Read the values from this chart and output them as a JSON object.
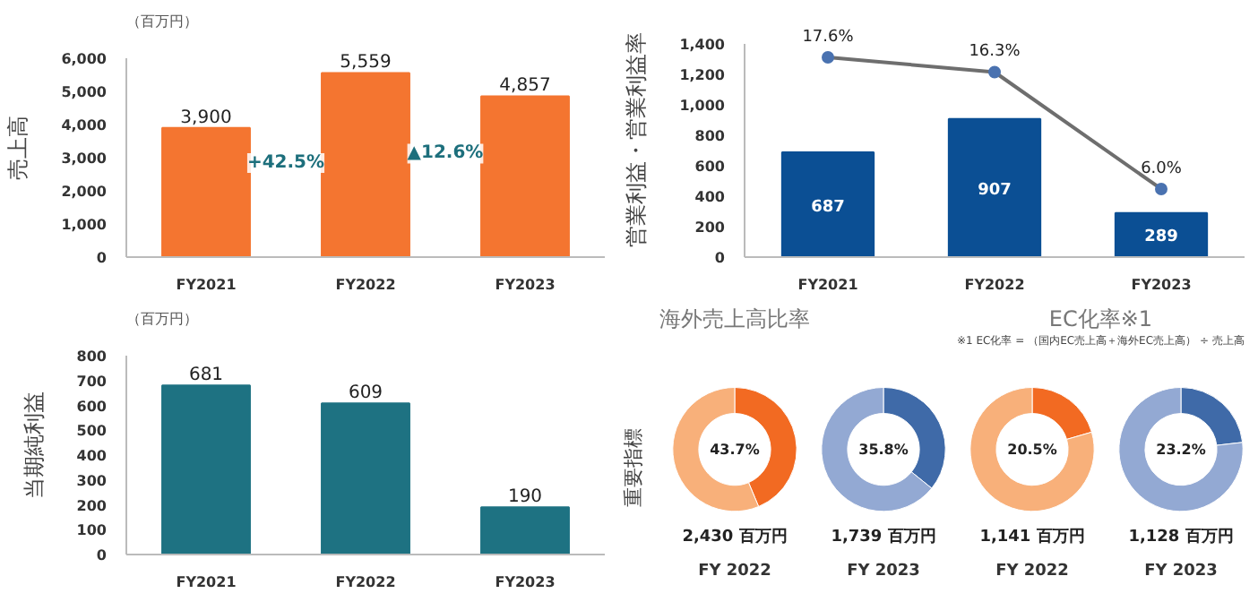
{
  "chart_data": [
    {
      "type": "bar",
      "ylabel": "売上高",
      "annotations": [
        "（百万円）",
        "+42.5%",
        "▲12.6%"
      ],
      "categories": [
        "FY2021",
        "FY2022",
        "FY2023"
      ],
      "ylim": [
        0,
        6000
      ],
      "yticks": [
        0,
        {
          "value": 1000,
          "label": "1,000"
        },
        {
          "value": 2000,
          "label": "2,000"
        },
        {
          "value": 3000,
          "label": "3,000"
        },
        {
          "value": 4000,
          "label": "4,000"
        },
        {
          "value": 5000,
          "label": "5,000"
        },
        {
          "value": 6000,
          "label": "6,000"
        }
      ],
      "series": [
        {
          "color": "#f47530",
          "values": [
            3900,
            5559,
            4857
          ],
          "value_labels": [
            "3,900",
            "5,559",
            "4,857"
          ]
        }
      ]
    },
    {
      "type": "bar",
      "ylabel": "営業利益・営業利益率",
      "categories": [
        "FY2021",
        "FY2022",
        "FY2023"
      ],
      "ylim": [
        0,
        1400
      ],
      "yticks": [
        0,
        200,
        400,
        600,
        800,
        {
          "value": 1000,
          "label": "1,000"
        },
        {
          "value": 1200,
          "label": "1,200"
        },
        {
          "value": 1400,
          "label": "1,400"
        }
      ],
      "y2lim": [
        0,
        18.8
      ],
      "marker": "circle",
      "series": [
        {
          "color": "#0b4f94",
          "values": [
            687,
            907,
            289
          ],
          "value_labels": [
            "687",
            "907",
            "289"
          ]
        },
        {
          "type": "line",
          "axis": "y2",
          "color": "#6e6e6e",
          "values": [
            17.6,
            16.3,
            6.0
          ],
          "value_labels": [
            "17.6%",
            "16.3%",
            "6.0%"
          ]
        }
      ]
    },
    {
      "type": "bar",
      "ylabel": "当期純利益",
      "annotations": [
        "（百万円）"
      ],
      "categories": [
        "FY2021",
        "FY2022",
        "FY2023"
      ],
      "ylim": [
        0,
        800
      ],
      "yticks": [
        0,
        100,
        200,
        300,
        400,
        500,
        600,
        700,
        800
      ],
      "series": [
        {
          "color": "#1e7282",
          "values": [
            681,
            609,
            190
          ],
          "value_labels": [
            "681",
            "609",
            "190"
          ]
        }
      ]
    },
    {
      "type": "donut",
      "title": "海外売上高比率",
      "ylabel": "重要指標",
      "xlabel": "FY 2022",
      "annotations": [
        "2,430 百万円"
      ],
      "categories": [
        null,
        null
      ],
      "values": [
        43.7,
        56.3
      ],
      "colors": [
        "#f26a22",
        "#f8b07a"
      ],
      "value_labels": [
        "43.7%",
        null
      ]
    },
    {
      "type": "donut",
      "xlabel": "FY 2023",
      "annotations": [
        "1,739 百万円"
      ],
      "categories": [
        null,
        null
      ],
      "values": [
        35.8,
        64.2
      ],
      "colors": [
        "#3f6aa8",
        "#93a9d3"
      ],
      "value_labels": [
        "35.8%",
        null
      ]
    },
    {
      "type": "donut",
      "title": "EC化率※1",
      "xlabel": "FY 2022",
      "annotations": [
        "1,141 百万円",
        "※1 EC化率 = （国内EC売上高＋海外EC売上高） ÷ 売上高"
      ],
      "categories": [
        null,
        null
      ],
      "values": [
        20.5,
        79.5
      ],
      "colors": [
        "#f26a22",
        "#f8b07a"
      ],
      "value_labels": [
        "20.5%",
        null
      ]
    },
    {
      "type": "donut",
      "xlabel": "FY 2023",
      "annotations": [
        "1,128 百万円"
      ],
      "categories": [
        null,
        null
      ],
      "values": [
        23.2,
        76.8
      ],
      "colors": [
        "#3f6aa8",
        "#93a9d3"
      ],
      "value_labels": [
        "23.2%",
        null
      ]
    }
  ]
}
